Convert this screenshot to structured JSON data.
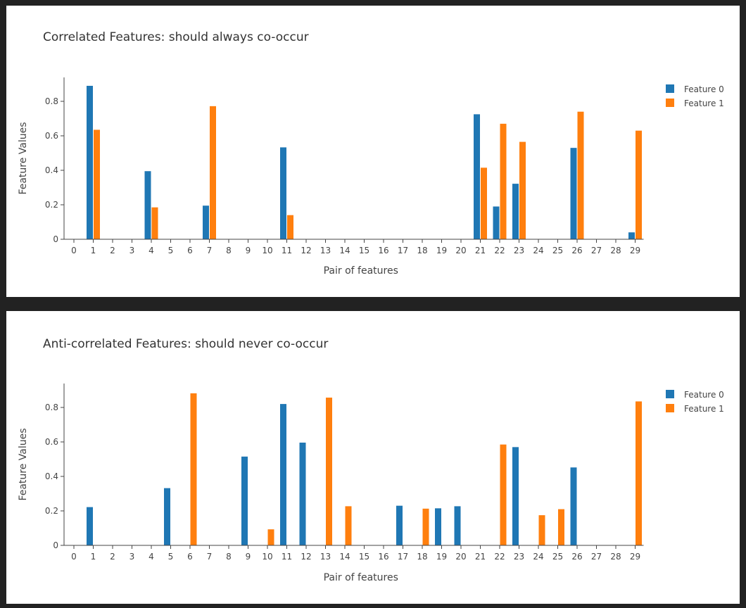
{
  "chart_data": [
    {
      "type": "bar",
      "title": "Correlated Features: should always co-occur",
      "xlabel": "Pair of features",
      "ylabel": "Feature Values",
      "categories": [
        "0",
        "1",
        "2",
        "3",
        "4",
        "5",
        "6",
        "7",
        "8",
        "9",
        "10",
        "11",
        "12",
        "13",
        "14",
        "15",
        "16",
        "17",
        "18",
        "19",
        "20",
        "21",
        "22",
        "23",
        "24",
        "25",
        "26",
        "27",
        "28",
        "29"
      ],
      "yticks": [
        "0",
        "0.2",
        "0.4",
        "0.6",
        "0.8"
      ],
      "ylim": [
        0,
        0.93
      ],
      "legend_position": "top-right",
      "grid": false,
      "series": [
        {
          "name": "Feature 0",
          "color": "#1f77b4",
          "values": [
            0,
            0.89,
            0,
            0,
            0.395,
            0,
            0,
            0.195,
            0,
            0,
            0,
            0.533,
            0,
            0,
            0,
            0,
            0,
            0,
            0,
            0,
            0,
            0.725,
            0.19,
            0.322,
            0,
            0,
            0.53,
            0,
            0,
            0.04
          ]
        },
        {
          "name": "Feature 1",
          "color": "#ff7f0e",
          "values": [
            0,
            0.635,
            0,
            0,
            0.185,
            0,
            0,
            0.772,
            0,
            0,
            0,
            0.14,
            0,
            0,
            0,
            0,
            0,
            0,
            0,
            0,
            0,
            0.415,
            0.67,
            0.565,
            0,
            0,
            0.74,
            0,
            0,
            0.63
          ]
        }
      ]
    },
    {
      "type": "bar",
      "title": "Anti-correlated Features: should never co-occur",
      "xlabel": "Pair of features",
      "ylabel": "Feature Values",
      "categories": [
        "0",
        "1",
        "2",
        "3",
        "4",
        "5",
        "6",
        "7",
        "8",
        "9",
        "10",
        "11",
        "12",
        "13",
        "14",
        "15",
        "16",
        "17",
        "18",
        "19",
        "20",
        "21",
        "22",
        "23",
        "24",
        "25",
        "26",
        "27",
        "28",
        "29"
      ],
      "yticks": [
        "0",
        "0.2",
        "0.4",
        "0.6",
        "0.8"
      ],
      "ylim": [
        0,
        0.93
      ],
      "legend_position": "top-right",
      "grid": false,
      "series": [
        {
          "name": "Feature 0",
          "color": "#1f77b4",
          "values": [
            0,
            0.222,
            0,
            0,
            0,
            0.332,
            0,
            0,
            0,
            0.515,
            0,
            0.82,
            0.596,
            0,
            0,
            0,
            0,
            0.23,
            0,
            0.215,
            0.227,
            0,
            0,
            0.57,
            0,
            0,
            0.452,
            0,
            0,
            0
          ]
        },
        {
          "name": "Feature 1",
          "color": "#ff7f0e",
          "values": [
            0,
            0,
            0,
            0,
            0,
            0,
            0.882,
            0,
            0,
            0,
            0.093,
            0,
            0,
            0.857,
            0.227,
            0,
            0,
            0,
            0.213,
            0,
            0,
            0,
            0.585,
            0,
            0.175,
            0.21,
            0,
            0,
            0,
            0.835
          ]
        }
      ]
    }
  ]
}
